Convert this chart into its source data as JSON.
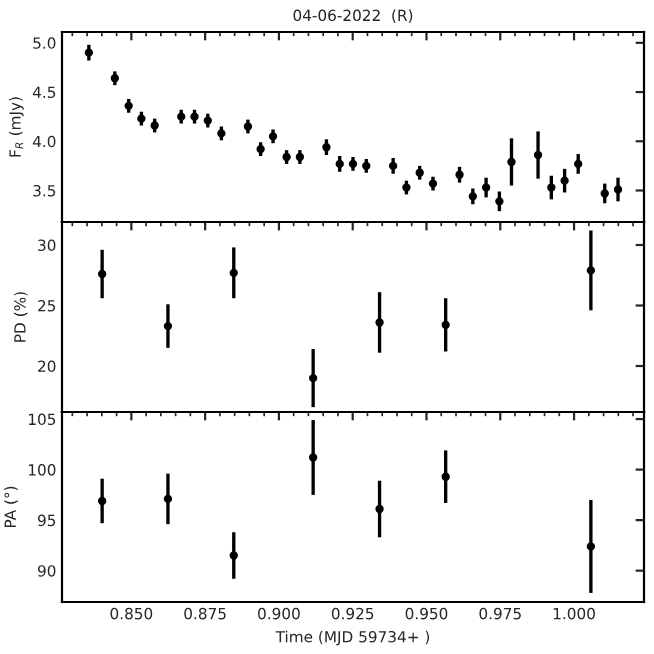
{
  "chart_data": [
    {
      "type": "scatter",
      "title": "04-06-2022  (R)",
      "ylabel": "F$_{R}$ (mJy)",
      "marker": "circle",
      "grid": false,
      "tick_labels": "y",
      "xlim": [
        0.8265,
        1.0237
      ],
      "xticks": [
        {
          "value": 0.85,
          "label": null
        },
        {
          "value": 0.875,
          "label": null
        },
        {
          "value": 0.9,
          "label": null
        },
        {
          "value": 0.925,
          "label": null
        },
        {
          "value": 0.95,
          "label": null
        },
        {
          "value": 0.975,
          "label": null
        },
        {
          "value": 1.0,
          "label": null
        }
      ],
      "ylim": [
        3.18,
        5.11
      ],
      "yticks": [
        {
          "value": 3.5,
          "label": "3.5"
        },
        {
          "value": 4.0,
          "label": "4.0"
        },
        {
          "value": 4.5,
          "label": "4.5"
        },
        {
          "value": 5.0,
          "label": "5.0"
        }
      ],
      "series": [
        {
          "color": "#000000",
          "x": [
            0.8356,
            0.8444,
            0.8491,
            0.8534,
            0.8579,
            0.8669,
            0.8714,
            0.8759,
            0.8805,
            0.8895,
            0.8938,
            0.898,
            0.9026,
            0.9071,
            0.9161,
            0.9206,
            0.9251,
            0.9296,
            0.9387,
            0.9432,
            0.9477,
            0.9522,
            0.9612,
            0.9657,
            0.9702,
            0.9747,
            0.9788,
            0.9878,
            0.9923,
            0.9968,
            1.0014,
            1.0104,
            1.0149
          ],
          "values": [
            4.9,
            4.64,
            4.36,
            4.23,
            4.16,
            4.25,
            4.25,
            4.21,
            4.08,
            4.15,
            3.92,
            4.05,
            3.84,
            3.84,
            3.94,
            3.77,
            3.77,
            3.75,
            3.75,
            3.53,
            3.68,
            3.57,
            3.66,
            3.44,
            3.53,
            3.39,
            3.79,
            3.86,
            3.53,
            3.6,
            3.77,
            3.47,
            3.51
          ],
          "errors": [
            0.08,
            0.07,
            0.07,
            0.07,
            0.07,
            0.07,
            0.07,
            0.07,
            0.07,
            0.07,
            0.07,
            0.07,
            0.07,
            0.07,
            0.08,
            0.08,
            0.07,
            0.07,
            0.08,
            0.07,
            0.07,
            0.07,
            0.08,
            0.08,
            0.1,
            0.1,
            0.24,
            0.24,
            0.12,
            0.12,
            0.1,
            0.1,
            0.12
          ]
        }
      ]
    },
    {
      "type": "scatter",
      "ylabel": "PD (%)",
      "marker": "circle",
      "grid": false,
      "tick_labels": "y",
      "xlim": [
        0.8265,
        1.0237
      ],
      "xticks": [
        {
          "value": 0.85,
          "label": null
        },
        {
          "value": 0.875,
          "label": null
        },
        {
          "value": 0.9,
          "label": null
        },
        {
          "value": 0.925,
          "label": null
        },
        {
          "value": 0.95,
          "label": null
        },
        {
          "value": 0.975,
          "label": null
        },
        {
          "value": 1.0,
          "label": null
        }
      ],
      "ylim": [
        16.2,
        31.9
      ],
      "yticks": [
        20,
        25,
        30
      ],
      "series": [
        {
          "color": "#000000",
          "x": [
            0.8401,
            0.8624,
            0.8847,
            0.9116,
            0.9341,
            0.9565,
            1.0057
          ],
          "values": [
            27.6,
            23.3,
            27.7,
            19.0,
            23.6,
            23.4,
            27.9
          ],
          "errors": [
            2.0,
            1.8,
            2.1,
            2.4,
            2.5,
            2.2,
            3.3
          ]
        }
      ]
    },
    {
      "type": "scatter",
      "ylabel": "PA (°)",
      "xlabel": "Time (MJD 59734+ )",
      "marker": "circle",
      "grid": false,
      "xlim": [
        0.8265,
        1.0237
      ],
      "xticks": [
        {
          "value": 0.85,
          "label": "0.850"
        },
        {
          "value": 0.875,
          "label": "0.875"
        },
        {
          "value": 0.9,
          "label": "0.900"
        },
        {
          "value": 0.925,
          "label": "0.925"
        },
        {
          "value": 0.95,
          "label": "0.950"
        },
        {
          "value": 0.975,
          "label": "0.975"
        },
        {
          "value": 1.0,
          "label": "1.000"
        }
      ],
      "ylim": [
        86.9,
        105.7
      ],
      "yticks": [
        90,
        95,
        100,
        105
      ],
      "series": [
        {
          "color": "#000000",
          "x": [
            0.8401,
            0.8624,
            0.8847,
            0.9116,
            0.9341,
            0.9565,
            1.0057
          ],
          "values": [
            96.9,
            97.1,
            91.5,
            101.2,
            96.1,
            99.3,
            92.4
          ],
          "errors": [
            2.2,
            2.5,
            2.3,
            3.7,
            2.8,
            2.6,
            4.6
          ]
        }
      ]
    }
  ]
}
